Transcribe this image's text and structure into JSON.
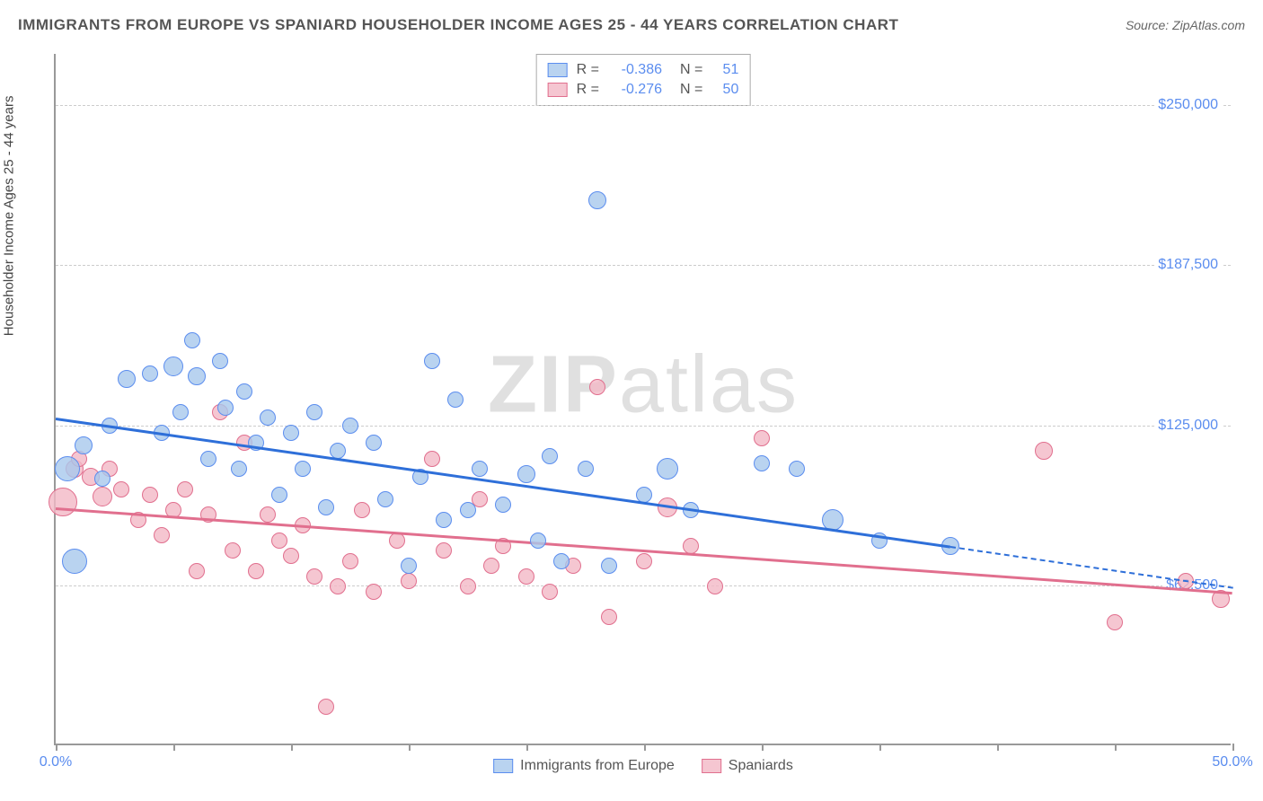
{
  "title": "IMMIGRANTS FROM EUROPE VS SPANIARD HOUSEHOLDER INCOME AGES 25 - 44 YEARS CORRELATION CHART",
  "source": "Source: ZipAtlas.com",
  "ylabel": "Householder Income Ages 25 - 44 years",
  "watermark_bold": "ZIP",
  "watermark_light": "atlas",
  "chart": {
    "type": "scatter",
    "background_color": "#ffffff",
    "grid_color": "#cccccc",
    "grid_dash": true,
    "axis_color": "#999999",
    "xlim": [
      0,
      50
    ],
    "ylim": [
      0,
      270000
    ],
    "xticks": [
      0,
      5,
      10,
      15,
      20,
      25,
      30,
      35,
      40,
      45,
      50
    ],
    "xlabels_shown": {
      "0": "0.0%",
      "50": "50.0%"
    },
    "yticks": [
      62500,
      125000,
      187500,
      250000
    ],
    "ylabels": {
      "62500": "$62,500",
      "125000": "$125,000",
      "187500": "$187,500",
      "250000": "$250,000"
    },
    "tick_label_color": "#5b8def",
    "tick_label_fontsize": 16,
    "title_fontsize": 17,
    "title_color": "#555555",
    "series": [
      {
        "name": "Immigrants from Europe",
        "label": "Immigrants from Europe",
        "point_fill": "#a8c8eccc",
        "point_stroke": "#5b8def",
        "trend_color": "#2e6fd9",
        "R": "-0.386",
        "N": "51",
        "trend": {
          "x1": 0,
          "y1": 128000,
          "x2": 38,
          "y2": 78000,
          "dash_to_x": 50,
          "dash_to_y": 62000
        },
        "marker_radius": 9,
        "points": [
          {
            "x": 0.5,
            "y": 108000,
            "r": 14
          },
          {
            "x": 0.8,
            "y": 72000,
            "r": 14
          },
          {
            "x": 1.2,
            "y": 117000,
            "r": 10
          },
          {
            "x": 2.0,
            "y": 104000,
            "r": 9
          },
          {
            "x": 2.3,
            "y": 125000,
            "r": 9
          },
          {
            "x": 3.0,
            "y": 143000,
            "r": 10
          },
          {
            "x": 4.0,
            "y": 145000,
            "r": 9
          },
          {
            "x": 4.5,
            "y": 122000,
            "r": 9
          },
          {
            "x": 5.0,
            "y": 148000,
            "r": 11
          },
          {
            "x": 5.3,
            "y": 130000,
            "r": 9
          },
          {
            "x": 5.8,
            "y": 158000,
            "r": 9
          },
          {
            "x": 6.0,
            "y": 144000,
            "r": 10
          },
          {
            "x": 6.5,
            "y": 112000,
            "r": 9
          },
          {
            "x": 7.0,
            "y": 150000,
            "r": 9
          },
          {
            "x": 7.2,
            "y": 132000,
            "r": 9
          },
          {
            "x": 7.8,
            "y": 108000,
            "r": 9
          },
          {
            "x": 8.0,
            "y": 138000,
            "r": 9
          },
          {
            "x": 8.5,
            "y": 118000,
            "r": 9
          },
          {
            "x": 9.0,
            "y": 128000,
            "r": 9
          },
          {
            "x": 9.5,
            "y": 98000,
            "r": 9
          },
          {
            "x": 10.0,
            "y": 122000,
            "r": 9
          },
          {
            "x": 10.5,
            "y": 108000,
            "r": 9
          },
          {
            "x": 11.0,
            "y": 130000,
            "r": 9
          },
          {
            "x": 11.5,
            "y": 93000,
            "r": 9
          },
          {
            "x": 12.0,
            "y": 115000,
            "r": 9
          },
          {
            "x": 12.5,
            "y": 125000,
            "r": 9
          },
          {
            "x": 13.5,
            "y": 118000,
            "r": 9
          },
          {
            "x": 14.0,
            "y": 96000,
            "r": 9
          },
          {
            "x": 15.0,
            "y": 70000,
            "r": 9
          },
          {
            "x": 15.5,
            "y": 105000,
            "r": 9
          },
          {
            "x": 16.0,
            "y": 150000,
            "r": 9
          },
          {
            "x": 16.5,
            "y": 88000,
            "r": 9
          },
          {
            "x": 17.0,
            "y": 135000,
            "r": 9
          },
          {
            "x": 17.5,
            "y": 92000,
            "r": 9
          },
          {
            "x": 18.0,
            "y": 108000,
            "r": 9
          },
          {
            "x": 19.0,
            "y": 94000,
            "r": 9
          },
          {
            "x": 20.0,
            "y": 106000,
            "r": 10
          },
          {
            "x": 20.5,
            "y": 80000,
            "r": 9
          },
          {
            "x": 21.0,
            "y": 113000,
            "r": 9
          },
          {
            "x": 21.5,
            "y": 72000,
            "r": 9
          },
          {
            "x": 22.5,
            "y": 108000,
            "r": 9
          },
          {
            "x": 23.0,
            "y": 213000,
            "r": 10
          },
          {
            "x": 23.5,
            "y": 70000,
            "r": 9
          },
          {
            "x": 25.0,
            "y": 98000,
            "r": 9
          },
          {
            "x": 26.0,
            "y": 108000,
            "r": 12
          },
          {
            "x": 27.0,
            "y": 92000,
            "r": 9
          },
          {
            "x": 30.0,
            "y": 110000,
            "r": 9
          },
          {
            "x": 31.5,
            "y": 108000,
            "r": 9
          },
          {
            "x": 33.0,
            "y": 88000,
            "r": 12
          },
          {
            "x": 35.0,
            "y": 80000,
            "r": 9
          },
          {
            "x": 38.0,
            "y": 78000,
            "r": 10
          }
        ]
      },
      {
        "name": "Spaniards",
        "label": "Spaniards",
        "point_fill": "#f2b8c6cc",
        "point_stroke": "#e16f8e",
        "trend_color": "#e16f8e",
        "R": "-0.276",
        "N": "50",
        "trend": {
          "x1": 0,
          "y1": 93000,
          "x2": 50,
          "y2": 60000
        },
        "marker_radius": 9,
        "points": [
          {
            "x": 0.3,
            "y": 95000,
            "r": 16
          },
          {
            "x": 0.8,
            "y": 108000,
            "r": 10
          },
          {
            "x": 1.0,
            "y": 112000,
            "r": 9
          },
          {
            "x": 1.5,
            "y": 105000,
            "r": 10
          },
          {
            "x": 2.0,
            "y": 97000,
            "r": 11
          },
          {
            "x": 2.3,
            "y": 108000,
            "r": 9
          },
          {
            "x": 2.8,
            "y": 100000,
            "r": 9
          },
          {
            "x": 3.5,
            "y": 88000,
            "r": 9
          },
          {
            "x": 4.0,
            "y": 98000,
            "r": 9
          },
          {
            "x": 4.5,
            "y": 82000,
            "r": 9
          },
          {
            "x": 5.0,
            "y": 92000,
            "r": 9
          },
          {
            "x": 5.5,
            "y": 100000,
            "r": 9
          },
          {
            "x": 6.0,
            "y": 68000,
            "r": 9
          },
          {
            "x": 6.5,
            "y": 90000,
            "r": 9
          },
          {
            "x": 7.0,
            "y": 130000,
            "r": 9
          },
          {
            "x": 7.5,
            "y": 76000,
            "r": 9
          },
          {
            "x": 8.0,
            "y": 118000,
            "r": 9
          },
          {
            "x": 8.5,
            "y": 68000,
            "r": 9
          },
          {
            "x": 9.0,
            "y": 90000,
            "r": 9
          },
          {
            "x": 9.5,
            "y": 80000,
            "r": 9
          },
          {
            "x": 10.0,
            "y": 74000,
            "r": 9
          },
          {
            "x": 10.5,
            "y": 86000,
            "r": 9
          },
          {
            "x": 11.0,
            "y": 66000,
            "r": 9
          },
          {
            "x": 11.5,
            "y": 15000,
            "r": 9
          },
          {
            "x": 12.0,
            "y": 62000,
            "r": 9
          },
          {
            "x": 12.5,
            "y": 72000,
            "r": 9
          },
          {
            "x": 13.0,
            "y": 92000,
            "r": 9
          },
          {
            "x": 13.5,
            "y": 60000,
            "r": 9
          },
          {
            "x": 14.5,
            "y": 80000,
            "r": 9
          },
          {
            "x": 15.0,
            "y": 64000,
            "r": 9
          },
          {
            "x": 16.0,
            "y": 112000,
            "r": 9
          },
          {
            "x": 16.5,
            "y": 76000,
            "r": 9
          },
          {
            "x": 17.5,
            "y": 62000,
            "r": 9
          },
          {
            "x": 18.0,
            "y": 96000,
            "r": 9
          },
          {
            "x": 18.5,
            "y": 70000,
            "r": 9
          },
          {
            "x": 19.0,
            "y": 78000,
            "r": 9
          },
          {
            "x": 20.0,
            "y": 66000,
            "r": 9
          },
          {
            "x": 21.0,
            "y": 60000,
            "r": 9
          },
          {
            "x": 22.0,
            "y": 70000,
            "r": 9
          },
          {
            "x": 23.0,
            "y": 140000,
            "r": 9
          },
          {
            "x": 23.5,
            "y": 50000,
            "r": 9
          },
          {
            "x": 25.0,
            "y": 72000,
            "r": 9
          },
          {
            "x": 26.0,
            "y": 93000,
            "r": 11
          },
          {
            "x": 28.0,
            "y": 62000,
            "r": 9
          },
          {
            "x": 30.0,
            "y": 120000,
            "r": 9
          },
          {
            "x": 42.0,
            "y": 115000,
            "r": 10
          },
          {
            "x": 45.0,
            "y": 48000,
            "r": 9
          },
          {
            "x": 48.0,
            "y": 64000,
            "r": 9
          },
          {
            "x": 49.5,
            "y": 57000,
            "r": 10
          },
          {
            "x": 27.0,
            "y": 78000,
            "r": 9
          }
        ]
      }
    ],
    "legend_position": "bottom-center",
    "stat_box_position": "top-center"
  }
}
